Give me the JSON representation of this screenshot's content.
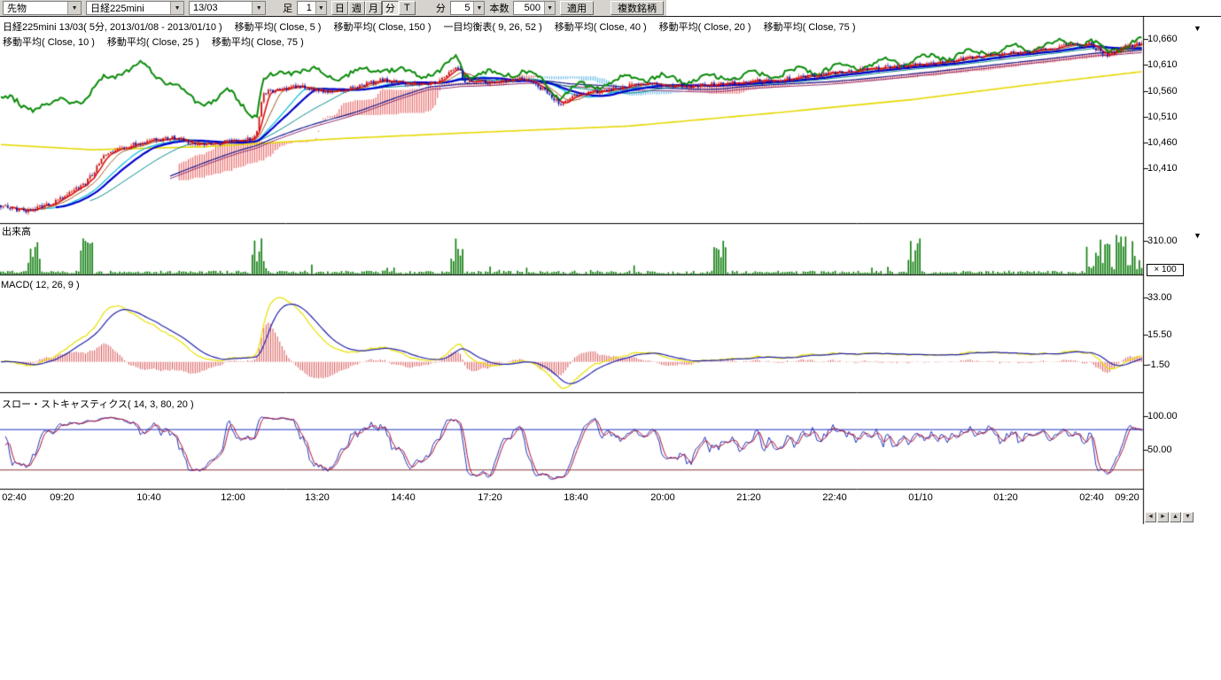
{
  "toolbar": {
    "instrument_type": "先物",
    "instrument": "日経225mini",
    "contract_month": "13/03",
    "bar_label": "足",
    "bar_value": "1",
    "period_buttons": [
      "日",
      "週",
      "月",
      "分",
      "T"
    ],
    "minute_label": "分",
    "minute_value": "5",
    "count_label": "本数",
    "count_value": "500",
    "apply_label": "適用",
    "multi_symbol_label": "複数銘柄"
  },
  "legend": {
    "line1": [
      "日経225mini 13/03( 5分, 2013/01/08 - 2013/01/10 )",
      "移動平均( Close, 5 )",
      "移動平均( Close, 150 )",
      "一目均衡表( 9, 26, 52 )",
      "移動平均( Close, 40 )",
      "移動平均( Close, 20 )",
      "移動平均( Close, 75 )"
    ],
    "line2": [
      "移動平均( Close, 10 )",
      "移動平均( Close, 25 )",
      "移動平均( Close, 75 )"
    ]
  },
  "panes": {
    "volume_label": "出来高",
    "macd_label": "MACD( 12, 26, 9 )",
    "stoch_label": "スロー・ストキャスティクス( 14, 3, 80, 20 )"
  },
  "axis": {
    "price_labels": [
      "10,660",
      "10,610",
      "10,560",
      "10,510",
      "10,460",
      "10,410"
    ],
    "volume_label": "310.00",
    "volume_multiplier": "× 100",
    "macd_labels": [
      "33.00",
      "15.50",
      "-1.50"
    ],
    "stoch_labels": [
      "100.00",
      "50.00"
    ]
  },
  "time_axis": [
    "02:40",
    "09:20",
    "10:40",
    "12:00",
    "13:20",
    "14:40",
    "17:20",
    "18:40",
    "20:00",
    "21:20",
    "22:40",
    "01/10",
    "01:20",
    "02:40",
    "09:20"
  ],
  "chart_data": {
    "type": "candlestick",
    "title": "日経225mini 13/03 5分足",
    "bars": 500,
    "timeframe": "5分",
    "date_range": "2013/01/08 - 2013/01/10",
    "price_axis": {
      "ticks": [
        10660,
        10610,
        10560,
        10510,
        10460,
        10410
      ],
      "visible_range": [
        10300,
        10700
      ]
    },
    "price_anchors": [
      [
        0,
        10338
      ],
      [
        0.02,
        10326
      ],
      [
        0.045,
        10342
      ],
      [
        0.06,
        10360
      ],
      [
        0.075,
        10382
      ],
      [
        0.09,
        10432
      ],
      [
        0.105,
        10448
      ],
      [
        0.125,
        10462
      ],
      [
        0.15,
        10470
      ],
      [
        0.175,
        10455
      ],
      [
        0.2,
        10462
      ],
      [
        0.218,
        10468
      ],
      [
        0.224,
        10474
      ],
      [
        0.23,
        10556
      ],
      [
        0.26,
        10572
      ],
      [
        0.285,
        10556
      ],
      [
        0.31,
        10568
      ],
      [
        0.335,
        10582
      ],
      [
        0.36,
        10572
      ],
      [
        0.385,
        10580
      ],
      [
        0.4,
        10610
      ],
      [
        0.407,
        10578
      ],
      [
        0.43,
        10576
      ],
      [
        0.455,
        10584
      ],
      [
        0.47,
        10572
      ],
      [
        0.49,
        10536
      ],
      [
        0.505,
        10552
      ],
      [
        0.53,
        10562
      ],
      [
        0.56,
        10574
      ],
      [
        0.6,
        10570
      ],
      [
        0.64,
        10576
      ],
      [
        0.68,
        10582
      ],
      [
        0.72,
        10592
      ],
      [
        0.76,
        10602
      ],
      [
        0.8,
        10612
      ],
      [
        0.84,
        10622
      ],
      [
        0.88,
        10632
      ],
      [
        0.91,
        10640
      ],
      [
        0.935,
        10648
      ],
      [
        0.955,
        10652
      ],
      [
        0.968,
        10630
      ],
      [
        0.985,
        10645
      ],
      [
        1,
        10655
      ]
    ],
    "overlay_green_offset_anchors": [
      [
        0,
        212
      ],
      [
        0.05,
        190
      ],
      [
        0.09,
        150
      ],
      [
        0.12,
        152
      ],
      [
        0.14,
        120
      ],
      [
        0.17,
        80
      ],
      [
        0.2,
        95
      ],
      [
        0.23,
        25
      ],
      [
        0.27,
        35
      ],
      [
        0.32,
        25
      ],
      [
        0.38,
        18
      ],
      [
        0.45,
        15
      ],
      [
        0.55,
        14
      ],
      [
        0.65,
        12
      ],
      [
        0.75,
        10
      ],
      [
        0.85,
        9
      ],
      [
        0.95,
        6
      ],
      [
        1,
        5
      ]
    ],
    "ma150_anchors": [
      [
        0,
        10456
      ],
      [
        0.08,
        10446
      ],
      [
        0.18,
        10452
      ],
      [
        0.3,
        10468
      ],
      [
        0.42,
        10480
      ],
      [
        0.55,
        10492
      ],
      [
        0.68,
        10518
      ],
      [
        0.8,
        10544
      ],
      [
        0.9,
        10572
      ],
      [
        1,
        10598
      ]
    ],
    "moving_averages": [
      5,
      10,
      20,
      25,
      40,
      75,
      150
    ],
    "ichimoku_params": [
      9,
      26,
      52
    ],
    "volume_axis": {
      "max": 310,
      "multiplier": 100
    },
    "volume_spike_positions": [
      0.03,
      0.075,
      0.225,
      0.4,
      0.63,
      0.8
    ],
    "volume_end_cluster_start": 0.95,
    "macd": {
      "params": [
        12,
        26,
        9
      ],
      "axis_ticks": [
        33.0,
        15.5,
        -1.5
      ],
      "peak": 33
    },
    "stochastics": {
      "params": [
        14,
        3,
        80,
        20
      ],
      "axis_ticks": [
        100,
        50
      ],
      "bands": [
        80,
        20
      ]
    },
    "series_colors": {
      "candle_up": "#cc1111",
      "candle_down": "#1111aa",
      "volume": "#0a7a0a",
      "ma5": "#dd1111",
      "ma10": "#995522",
      "ma20": "#00bbdd",
      "ma25": "#0000cc",
      "ma40": "#008888",
      "ma75": "#1a1a8c",
      "ma75_2": "#8c2a6e",
      "ma150": "#e6d800",
      "overlay_green": "#0a8a0a",
      "macd_line": "#e8e000",
      "macd_signal": "#2222aa",
      "macd_hist": "#cc2222",
      "stoch_k": "#2233bb",
      "stoch_d": "#aa1133",
      "cloud_up": "#dd2222",
      "cloud_down": "#2299dd"
    },
    "seed": 7
  }
}
